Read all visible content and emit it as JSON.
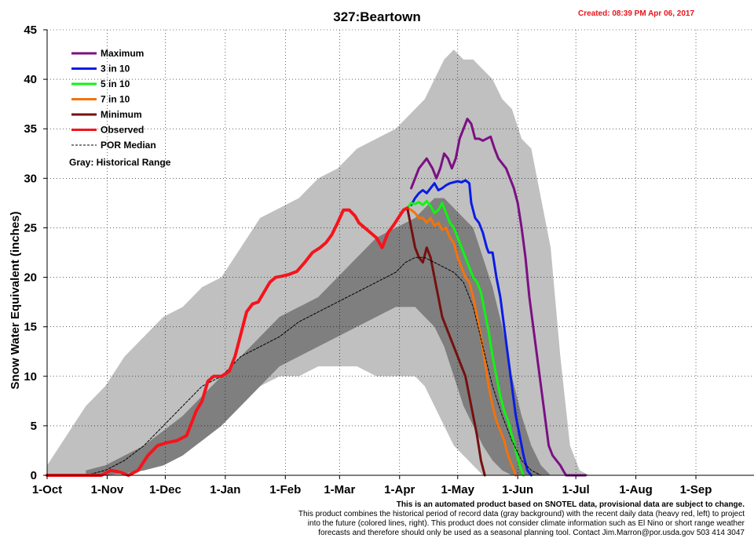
{
  "chart_data": {
    "type": "line",
    "title": "327:Beartown",
    "created": "Created: 08:39 PM Apr 06, 2017",
    "ylabel": "Snow Water Equivalent (inches)",
    "xlabel": "",
    "ylim": [
      0,
      45
    ],
    "xlim": [
      0,
      365
    ],
    "y_ticks": [
      0,
      5,
      10,
      15,
      20,
      25,
      30,
      35,
      40,
      45
    ],
    "x_ticks": [
      {
        "label": "1-Oct",
        "day": 0
      },
      {
        "label": "1-Nov",
        "day": 31
      },
      {
        "label": "1-Dec",
        "day": 61
      },
      {
        "label": "1-Jan",
        "day": 92
      },
      {
        "label": "1-Feb",
        "day": 123
      },
      {
        "label": "1-Mar",
        "day": 151
      },
      {
        "label": "1-Apr",
        "day": 182
      },
      {
        "label": "1-May",
        "day": 212
      },
      {
        "label": "1-Jun",
        "day": 243
      },
      {
        "label": "1-Jul",
        "day": 273
      },
      {
        "label": "1-Aug",
        "day": 304
      },
      {
        "label": "1-Sep",
        "day": 335
      }
    ],
    "grid": true,
    "legend_position": "top-left",
    "historical_range": {
      "label": "Gray: Historical Range",
      "color": "#c0c0c0",
      "x": [
        0,
        10,
        20,
        30,
        40,
        50,
        60,
        70,
        80,
        90,
        100,
        110,
        120,
        130,
        140,
        150,
        160,
        170,
        180,
        190,
        195,
        200,
        205,
        210,
        215,
        220,
        225,
        230,
        235,
        240,
        245,
        250,
        255,
        260,
        265,
        270,
        275,
        280
      ],
      "upper": [
        1,
        4,
        7,
        9,
        12,
        14,
        16,
        17,
        19,
        20,
        23,
        26,
        27,
        28,
        30,
        31,
        33,
        34,
        35,
        37,
        38,
        40,
        42,
        43,
        42,
        42,
        41,
        40,
        38,
        37,
        34,
        33,
        28,
        23,
        12,
        3,
        0.5,
        0
      ],
      "lower": [
        0,
        0,
        0,
        0,
        0,
        0.5,
        1,
        2,
        4,
        6,
        8,
        9,
        10,
        10,
        11,
        11,
        11,
        10,
        10,
        10,
        9,
        7,
        5,
        3,
        2,
        1,
        0,
        0,
        0,
        0,
        0,
        0,
        0,
        0,
        0,
        0,
        0,
        0
      ]
    },
    "interquartile_range": {
      "color": "#7f7f7f",
      "x": [
        20,
        30,
        40,
        50,
        60,
        70,
        80,
        90,
        100,
        110,
        120,
        130,
        140,
        150,
        160,
        170,
        180,
        190,
        195,
        200,
        205,
        210,
        215,
        220,
        225,
        230,
        235,
        240,
        245,
        250,
        255,
        260
      ],
      "upper": [
        0.5,
        1,
        2,
        3,
        4.5,
        6,
        8,
        10,
        12,
        14,
        16,
        17,
        18,
        20,
        22,
        24,
        25,
        26,
        27,
        28,
        28,
        27,
        26,
        25,
        22,
        19,
        15,
        10,
        6,
        3,
        1,
        0
      ],
      "lower": [
        0,
        0,
        0.2,
        0.5,
        1,
        2,
        3.5,
        5,
        7,
        9,
        11,
        12,
        13,
        14,
        15,
        16,
        17,
        17,
        16,
        15,
        13,
        10,
        7,
        5,
        3,
        1.5,
        0.5,
        0,
        0,
        0,
        0,
        0
      ]
    },
    "series": [
      {
        "name": "Maximum",
        "color": "#7b1083",
        "width": 3,
        "x": [
          188,
          192,
          196,
          199,
          201,
          203,
          205,
          207,
          209,
          211,
          213,
          215,
          217,
          219,
          221,
          223,
          225,
          227,
          229,
          231,
          233,
          235,
          237,
          239,
          241,
          243,
          245,
          247,
          249,
          251,
          253,
          255,
          257,
          259,
          261,
          263,
          265,
          267,
          268,
          272,
          275,
          277,
          278
        ],
        "y": [
          29,
          31,
          32,
          31,
          30,
          31,
          32.5,
          32,
          31,
          32,
          34,
          35,
          36,
          35.5,
          34,
          34,
          33.8,
          34,
          34.2,
          33,
          32,
          31.5,
          31,
          30,
          29,
          27.5,
          25,
          22,
          18,
          15,
          12,
          9,
          6,
          3,
          2,
          1.5,
          1,
          0.3,
          0,
          0,
          0,
          0,
          0
        ]
      },
      {
        "name": "3 in 10",
        "color": "#0a1ce6",
        "width": 3,
        "x": [
          188,
          190,
          192,
          194,
          196,
          198,
          200,
          202,
          204,
          206,
          208,
          210,
          212,
          214,
          216,
          218,
          219,
          221,
          223,
          225,
          227,
          228,
          230,
          232,
          234,
          236,
          238,
          240,
          242,
          244,
          246,
          248,
          250
        ],
        "y": [
          27.3,
          28,
          28.5,
          28.8,
          28.5,
          29,
          29.5,
          28.8,
          29,
          29.3,
          29.5,
          29.6,
          29.7,
          29.6,
          29.8,
          29.5,
          27.5,
          26,
          25.5,
          24.5,
          23,
          22.5,
          22.5,
          20,
          18,
          15,
          12,
          9,
          6,
          4,
          2,
          0.5,
          0
        ]
      },
      {
        "name": "5 in 10",
        "color": "#0ff511",
        "width": 3,
        "x": [
          186,
          188,
          190,
          192,
          194,
          196,
          198,
          200,
          202,
          204,
          206,
          208,
          210,
          212,
          214,
          216,
          218,
          220,
          222,
          224,
          226,
          228,
          230,
          232,
          234,
          236,
          238,
          240,
          242,
          244,
          246
        ],
        "y": [
          27,
          27.5,
          27.4,
          27.6,
          27.3,
          27.7,
          27.2,
          26.5,
          26.8,
          27.5,
          26.5,
          25.5,
          25,
          24,
          23,
          22,
          21,
          20,
          19.5,
          18.5,
          16.5,
          14.5,
          12,
          10,
          8,
          6.5,
          5.5,
          4,
          2.5,
          1,
          0
        ]
      },
      {
        "name": "7 in 10",
        "color": "#f5720a",
        "width": 3,
        "x": [
          186,
          188,
          190,
          192,
          194,
          196,
          198,
          200,
          202,
          204,
          206,
          208,
          210,
          212,
          214,
          216,
          218,
          220,
          222,
          224,
          226,
          228,
          230,
          232,
          234,
          236,
          238,
          240,
          242
        ],
        "y": [
          27,
          26.8,
          26.5,
          26,
          26,
          25.5,
          26,
          25.2,
          25.5,
          24.8,
          25,
          24,
          23.5,
          22,
          21,
          20,
          19.5,
          18,
          16,
          14,
          11.5,
          9,
          7,
          5.5,
          4.5,
          3.5,
          2,
          1,
          0
        ]
      },
      {
        "name": "Minimum",
        "color": "#761010",
        "width": 3,
        "x": [
          186,
          188,
          190,
          192,
          194,
          196,
          198,
          200,
          202,
          204,
          206,
          208,
          210,
          212,
          214,
          216,
          218,
          220,
          222,
          224,
          226
        ],
        "y": [
          27,
          25,
          23,
          22,
          21.5,
          23,
          22,
          20,
          18,
          16,
          15,
          14,
          13,
          12,
          11,
          10,
          8,
          6,
          4,
          1.5,
          0
        ]
      },
      {
        "name": "Observed",
        "color": "#f5141c",
        "width": 4,
        "x": [
          0,
          10,
          20,
          28,
          33,
          38,
          42,
          47,
          52,
          57,
          62,
          67,
          72,
          77,
          80,
          83,
          86,
          90,
          94,
          97,
          99,
          101,
          103,
          106,
          109,
          112,
          115,
          118,
          121,
          125,
          129,
          133,
          137,
          141,
          144,
          147,
          150,
          153,
          156,
          159,
          161,
          164,
          167,
          170,
          173,
          176,
          179,
          182,
          184,
          186
        ],
        "y": [
          0,
          0,
          0,
          0,
          0.5,
          0.3,
          0,
          0.5,
          2,
          3,
          3.3,
          3.5,
          4,
          6.5,
          7.5,
          9.5,
          10,
          10,
          10.5,
          12,
          13.5,
          15,
          16.5,
          17.3,
          17.5,
          18.5,
          19.5,
          20,
          20.1,
          20.3,
          20.6,
          21.5,
          22.5,
          23,
          23.5,
          24.3,
          25.5,
          26.8,
          26.8,
          26.2,
          25.5,
          25,
          24.5,
          24,
          23,
          24.5,
          25.3,
          26.2,
          26.8,
          27
        ]
      },
      {
        "name": "POR Median",
        "color": "#000000",
        "width": 1,
        "dash": "3,2",
        "x": [
          0,
          10,
          20,
          30,
          40,
          50,
          60,
          70,
          80,
          90,
          100,
          110,
          120,
          130,
          140,
          150,
          160,
          170,
          180,
          185,
          190,
          195,
          200,
          205,
          210,
          215,
          220,
          225,
          230,
          235,
          240,
          245,
          250,
          255
        ],
        "y": [
          0,
          0,
          0,
          0.5,
          1.5,
          3,
          5,
          7,
          9,
          10,
          12,
          13,
          14,
          15.5,
          16.5,
          17.5,
          18.5,
          19.5,
          20.5,
          21.5,
          22,
          22,
          21.5,
          21,
          20.5,
          19.5,
          17,
          13,
          9,
          6,
          3.5,
          1.5,
          0.5,
          0
        ]
      }
    ],
    "notes": [
      "This is an automated product based on SNOTEL data, provisional data are subject to change.",
      "This product combines the historical period of record data (gray background) with the recent daily data (heavy red, left) to project",
      "into the future (colored lines, right). This product does not consider climate information such as El Nino or short range weather",
      "forecasts and therefore should only be used as a seasonal planning tool. Contact Jim.Marron@por.usda.gov 503 414 3047"
    ]
  }
}
